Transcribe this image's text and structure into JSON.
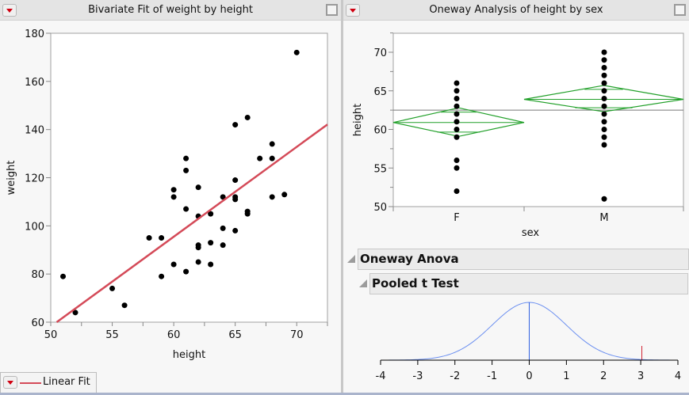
{
  "bivariate": {
    "title": "Bivariate Fit of weight by height",
    "legend_label": "Linear Fit",
    "fit_color": "#d44a58",
    "chart_data": {
      "type": "scatter",
      "xlabel": "height",
      "ylabel": "weight",
      "xlim": [
        50,
        72.5
      ],
      "ylim": [
        60,
        180
      ],
      "xticks": [
        50,
        55,
        60,
        65,
        70
      ],
      "yticks": [
        60,
        80,
        100,
        120,
        140,
        160,
        180
      ],
      "points": [
        [
          51,
          79
        ],
        [
          52,
          64
        ],
        [
          55,
          74
        ],
        [
          56,
          67
        ],
        [
          58,
          95
        ],
        [
          59,
          95
        ],
        [
          59,
          79
        ],
        [
          60,
          115
        ],
        [
          60,
          112
        ],
        [
          60,
          84
        ],
        [
          61,
          128
        ],
        [
          61,
          123
        ],
        [
          61,
          107
        ],
        [
          61,
          81
        ],
        [
          62,
          116
        ],
        [
          62,
          104
        ],
        [
          62,
          92
        ],
        [
          62,
          91
        ],
        [
          62,
          85
        ],
        [
          63,
          105
        ],
        [
          63,
          93
        ],
        [
          63,
          84
        ],
        [
          64,
          112
        ],
        [
          64,
          99
        ],
        [
          64,
          92
        ],
        [
          65,
          142
        ],
        [
          65,
          119
        ],
        [
          65,
          112
        ],
        [
          65,
          111
        ],
        [
          65,
          98
        ],
        [
          66,
          145
        ],
        [
          66,
          106
        ],
        [
          66,
          105
        ],
        [
          67,
          128
        ],
        [
          68,
          134
        ],
        [
          68,
          128
        ],
        [
          68,
          112
        ],
        [
          69,
          113
        ],
        [
          70,
          172
        ]
      ],
      "fit_line": {
        "name": "Linear Fit",
        "intercept": -128.3,
        "slope": 3.73
      }
    }
  },
  "oneway": {
    "title": "Oneway Analysis of height by sex",
    "diamond_color": "#22a02a",
    "chart_data": {
      "type": "scatter",
      "xlabel": "sex",
      "ylabel": "height",
      "ylim": [
        50,
        72.5
      ],
      "yticks": [
        50,
        55,
        60,
        65,
        70
      ],
      "categories": [
        "F",
        "M"
      ],
      "grand_mean": 62.5,
      "groups": [
        {
          "name": "F",
          "values": [
            66,
            65,
            64,
            63,
            62,
            61,
            60,
            59,
            56,
            55,
            52
          ],
          "mean": 60.9,
          "ci": [
            59.1,
            62.8
          ]
        },
        {
          "name": "M",
          "values": [
            70,
            69,
            68,
            67,
            66,
            65,
            64,
            63,
            62,
            61,
            60,
            59,
            58,
            51
          ],
          "mean": 63.9,
          "ci": [
            62.3,
            65.7
          ]
        }
      ]
    }
  },
  "reports": {
    "anova_title": "Oneway Anova",
    "ttest_title": "Pooled t Test"
  },
  "t_plot": {
    "curve_color": "#6b8ff0",
    "left_tail_color": "#1a9fc8",
    "right_tail_color": "#2060e8",
    "marker_color": "#d02030",
    "chart_data": {
      "type": "area",
      "xlim": [
        -4,
        4
      ],
      "xticks": [
        -4,
        -3,
        -2,
        -1,
        0,
        1,
        2,
        3,
        4
      ],
      "t_ratio": 3.03
    }
  }
}
